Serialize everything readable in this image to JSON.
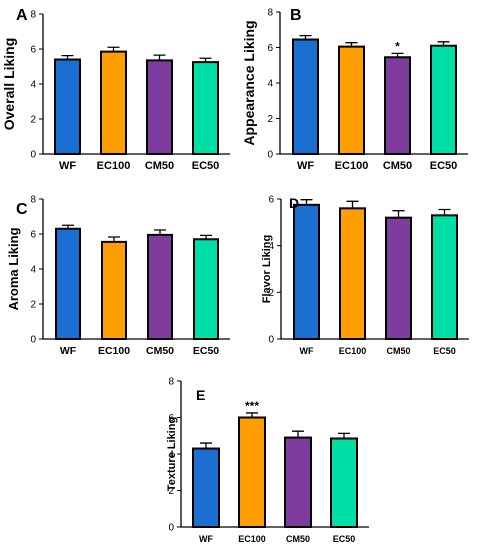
{
  "chart_data": [
    {
      "type": "bar",
      "panel": "A",
      "ylabel": "Overall Liking",
      "categories": [
        "WF",
        "EC100",
        "CM50",
        "EC50"
      ],
      "values": [
        5.4,
        5.85,
        5.35,
        5.25
      ],
      "errors": [
        0.22,
        0.25,
        0.3,
        0.22
      ],
      "significance": [
        "",
        "",
        "",
        ""
      ],
      "ylim": [
        0,
        8
      ],
      "yticks": [
        0,
        2,
        4,
        6,
        8
      ],
      "colors": [
        "#1a6fd1",
        "#ff9e00",
        "#7d3c9e",
        "#00e0a6"
      ]
    },
    {
      "type": "bar",
      "panel": "B",
      "ylabel": "Appearance Liking",
      "categories": [
        "WF",
        "EC100",
        "CM50",
        "EC50"
      ],
      "values": [
        6.45,
        6.05,
        5.45,
        6.1
      ],
      "errors": [
        0.22,
        0.22,
        0.22,
        0.22
      ],
      "significance": [
        "",
        "",
        "*",
        ""
      ],
      "ylim": [
        0,
        8
      ],
      "yticks": [
        0,
        2,
        4,
        6,
        8
      ],
      "colors": [
        "#1a6fd1",
        "#ff9e00",
        "#7d3c9e",
        "#00e0a6"
      ]
    },
    {
      "type": "bar",
      "panel": "C",
      "ylabel": "Aroma Liking",
      "categories": [
        "WF",
        "EC100",
        "CM50",
        "EC50"
      ],
      "values": [
        6.3,
        5.55,
        5.95,
        5.7
      ],
      "errors": [
        0.2,
        0.28,
        0.28,
        0.22
      ],
      "significance": [
        "",
        "",
        "",
        ""
      ],
      "ylim": [
        0,
        8
      ],
      "yticks": [
        0,
        2,
        4,
        6,
        8
      ],
      "colors": [
        "#1a6fd1",
        "#ff9e00",
        "#7d3c9e",
        "#00e0a6"
      ]
    },
    {
      "type": "bar",
      "panel": "D",
      "ylabel": "Flavor Liking",
      "categories": [
        "WF",
        "EC100",
        "CM50",
        "EC50"
      ],
      "values": [
        5.75,
        5.6,
        5.2,
        5.3
      ],
      "errors": [
        0.22,
        0.3,
        0.3,
        0.25
      ],
      "significance": [
        "",
        "",
        "",
        ""
      ],
      "ylim": [
        0,
        6
      ],
      "yticks": [
        0,
        2,
        4,
        6
      ],
      "colors": [
        "#1a6fd1",
        "#ff9e00",
        "#7d3c9e",
        "#00e0a6"
      ]
    },
    {
      "type": "bar",
      "panel": "E",
      "ylabel": "Texture Liking",
      "categories": [
        "WF",
        "EC100",
        "CM50",
        "EC50"
      ],
      "values": [
        4.3,
        6.0,
        4.9,
        4.85
      ],
      "errors": [
        0.3,
        0.25,
        0.35,
        0.28
      ],
      "significance": [
        "",
        "***",
        "",
        ""
      ],
      "ylim": [
        0,
        8
      ],
      "yticks": [
        0,
        2,
        4,
        6,
        8
      ],
      "colors": [
        "#1a6fd1",
        "#ff9e00",
        "#7d3c9e",
        "#00e0a6"
      ]
    }
  ]
}
